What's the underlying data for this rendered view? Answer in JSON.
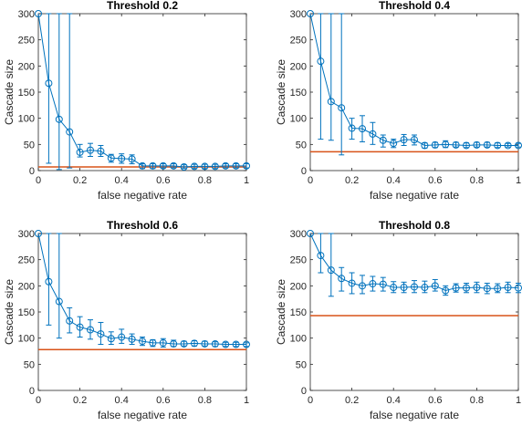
{
  "colors": {
    "series": "#0072BD",
    "threshold": "#D95319",
    "axis": "#262626"
  },
  "chart_data": [
    {
      "type": "line",
      "title": "Threshold 0.2",
      "xlabel": "false negative rate",
      "ylabel": "Cascade size",
      "xlim": [
        0,
        1
      ],
      "ylim": [
        0,
        300
      ],
      "xticks": [
        "0",
        "0.2",
        "0.4",
        "0.6",
        "0.8",
        "1"
      ],
      "yticks": [
        "0",
        "50",
        "100",
        "150",
        "200",
        "250",
        "300"
      ],
      "grid": false,
      "x": [
        0,
        0.05,
        0.1,
        0.15,
        0.2,
        0.25,
        0.3,
        0.35,
        0.4,
        0.45,
        0.5,
        0.55,
        0.6,
        0.65,
        0.7,
        0.75,
        0.8,
        0.85,
        0.9,
        0.95,
        1
      ],
      "values": [
        300,
        167,
        98,
        74,
        35,
        39,
        37,
        24,
        23,
        22,
        9,
        9,
        9,
        9,
        7,
        8,
        8,
        8,
        9,
        9,
        9
      ],
      "err_low": [
        300,
        14,
        2,
        5,
        26,
        27,
        27,
        16,
        14,
        13,
        4,
        4,
        5,
        5,
        4,
        4,
        4,
        4,
        5,
        5,
        5
      ],
      "err_high": [
        300,
        300,
        300,
        300,
        50,
        52,
        48,
        31,
        32,
        30,
        13,
        13,
        13,
        13,
        11,
        12,
        12,
        12,
        13,
        13,
        13
      ],
      "hline": 7
    },
    {
      "type": "line",
      "title": "Threshold 0.4",
      "xlabel": "false negative rate",
      "ylabel": "Cascade size",
      "xlim": [
        0,
        1
      ],
      "ylim": [
        0,
        300
      ],
      "xticks": [
        "0",
        "0.2",
        "0.4",
        "0.6",
        "0.8",
        "1"
      ],
      "yticks": [
        "0",
        "50",
        "100",
        "150",
        "200",
        "250",
        "300"
      ],
      "grid": false,
      "x": [
        0,
        0.05,
        0.1,
        0.15,
        0.2,
        0.25,
        0.3,
        0.35,
        0.4,
        0.45,
        0.5,
        0.55,
        0.6,
        0.65,
        0.7,
        0.75,
        0.8,
        0.85,
        0.9,
        0.95,
        1
      ],
      "values": [
        300,
        209,
        132,
        120,
        81,
        80,
        70,
        58,
        52,
        59,
        59,
        48,
        49,
        50,
        49,
        48,
        49,
        49,
        48,
        48,
        48
      ],
      "err_low": [
        300,
        60,
        58,
        30,
        60,
        55,
        50,
        45,
        44,
        48,
        49,
        43,
        44,
        44,
        45,
        44,
        45,
        45,
        44,
        45,
        45
      ],
      "err_high": [
        300,
        300,
        300,
        300,
        100,
        105,
        92,
        68,
        60,
        69,
        68,
        53,
        54,
        57,
        54,
        53,
        54,
        54,
        53,
        52,
        52
      ],
      "hline": 36
    },
    {
      "type": "line",
      "title": "Threshold 0.6",
      "xlabel": "false negative rate",
      "ylabel": "Cascade size",
      "xlim": [
        0,
        1
      ],
      "ylim": [
        0,
        300
      ],
      "xticks": [
        "0",
        "0.2",
        "0.4",
        "0.6",
        "0.8",
        "1"
      ],
      "yticks": [
        "0",
        "50",
        "100",
        "150",
        "200",
        "250",
        "300"
      ],
      "grid": false,
      "x": [
        0,
        0.05,
        0.1,
        0.15,
        0.2,
        0.25,
        0.3,
        0.35,
        0.4,
        0.45,
        0.5,
        0.55,
        0.6,
        0.65,
        0.7,
        0.75,
        0.8,
        0.85,
        0.9,
        0.95,
        1
      ],
      "values": [
        300,
        208,
        170,
        133,
        121,
        116,
        108,
        99,
        102,
        98,
        94,
        91,
        91,
        89,
        89,
        90,
        89,
        89,
        88,
        88,
        88
      ],
      "err_low": [
        300,
        125,
        100,
        110,
        102,
        98,
        88,
        88,
        90,
        88,
        86,
        84,
        83,
        84,
        85,
        85,
        85,
        84,
        84,
        84,
        84
      ],
      "err_high": [
        300,
        300,
        300,
        158,
        141,
        135,
        130,
        112,
        117,
        108,
        102,
        97,
        99,
        96,
        94,
        95,
        94,
        93,
        92,
        92,
        91
      ],
      "hline": 78
    },
    {
      "type": "line",
      "title": "Threshold 0.8",
      "xlabel": "false negative rate",
      "ylabel": "Cascade size",
      "xlim": [
        0,
        1
      ],
      "ylim": [
        0,
        300
      ],
      "xticks": [
        "0",
        "0.2",
        "0.4",
        "0.6",
        "0.8",
        "1"
      ],
      "yticks": [
        "0",
        "50",
        "100",
        "150",
        "200",
        "250",
        "300"
      ],
      "grid": false,
      "x": [
        0,
        0.05,
        0.1,
        0.15,
        0.2,
        0.25,
        0.3,
        0.35,
        0.4,
        0.45,
        0.5,
        0.55,
        0.6,
        0.65,
        0.7,
        0.75,
        0.8,
        0.85,
        0.9,
        0.95,
        1
      ],
      "values": [
        300,
        258,
        230,
        214,
        205,
        200,
        204,
        203,
        197,
        197,
        198,
        197,
        200,
        191,
        196,
        196,
        197,
        195,
        195,
        197,
        196
      ],
      "err_low": [
        300,
        225,
        180,
        190,
        185,
        185,
        190,
        190,
        187,
        187,
        187,
        187,
        190,
        182,
        188,
        187,
        187,
        185,
        187,
        187,
        187
      ],
      "err_high": [
        300,
        300,
        300,
        235,
        225,
        220,
        218,
        216,
        208,
        207,
        210,
        209,
        212,
        200,
        204,
        205,
        207,
        205,
        204,
        207,
        205
      ],
      "hline": 143
    }
  ]
}
